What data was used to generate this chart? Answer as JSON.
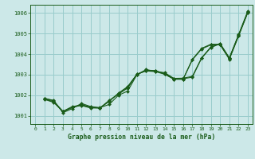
{
  "title": "Graphe pression niveau de la mer (hPa)",
  "background_color": "#cce8e8",
  "grid_color": "#99cccc",
  "line_color": "#1a5c1a",
  "marker_color": "#1a5c1a",
  "xlim": [
    -0.5,
    23.5
  ],
  "ylim": [
    1000.6,
    1006.4
  ],
  "yticks": [
    1001,
    1002,
    1003,
    1004,
    1005,
    1006
  ],
  "xticks": [
    0,
    1,
    2,
    3,
    4,
    5,
    6,
    7,
    8,
    9,
    10,
    11,
    12,
    13,
    14,
    15,
    16,
    17,
    18,
    19,
    20,
    21,
    22,
    23
  ],
  "series": [
    [
      0,
      1001.85,
      1001.75,
      1001.15,
      1001.35,
      1001.6,
      1001.45,
      1001.4,
      1001.55,
      1002.0,
      1002.2,
      1003.0,
      1003.25,
      1003.15,
      1003.1,
      1002.82,
      1002.83,
      1002.92,
      1003.82,
      1004.35,
      1004.52,
      1003.82,
      1004.95,
      1006.1
    ],
    [
      0,
      1001.85,
      1001.72,
      1001.2,
      1001.4,
      1001.55,
      1001.42,
      1001.38,
      1001.75,
      1002.05,
      1002.35,
      1003.0,
      1003.22,
      1003.2,
      1003.05,
      1002.8,
      1002.8,
      1002.88,
      1003.8,
      1004.32,
      1004.5,
      1003.8,
      1004.92,
      1006.05
    ],
    [
      0,
      1001.82,
      1001.68,
      1001.22,
      1001.45,
      1001.52,
      1001.4,
      1001.38,
      1001.72,
      1002.08,
      1002.4,
      1003.02,
      1003.2,
      1003.18,
      1003.05,
      1002.78,
      1002.78,
      1003.75,
      1004.28,
      1004.48,
      1004.48,
      1003.78,
      1004.9,
      1006.05
    ],
    [
      0,
      1001.8,
      1001.65,
      1001.2,
      1001.42,
      1001.5,
      1001.38,
      1001.38,
      1001.7,
      1002.1,
      1002.42,
      1003.02,
      1003.18,
      1003.15,
      1003.02,
      1002.78,
      1002.78,
      1003.72,
      1004.25,
      1004.45,
      1004.45,
      1003.75,
      1004.88,
      1006.02
    ]
  ]
}
